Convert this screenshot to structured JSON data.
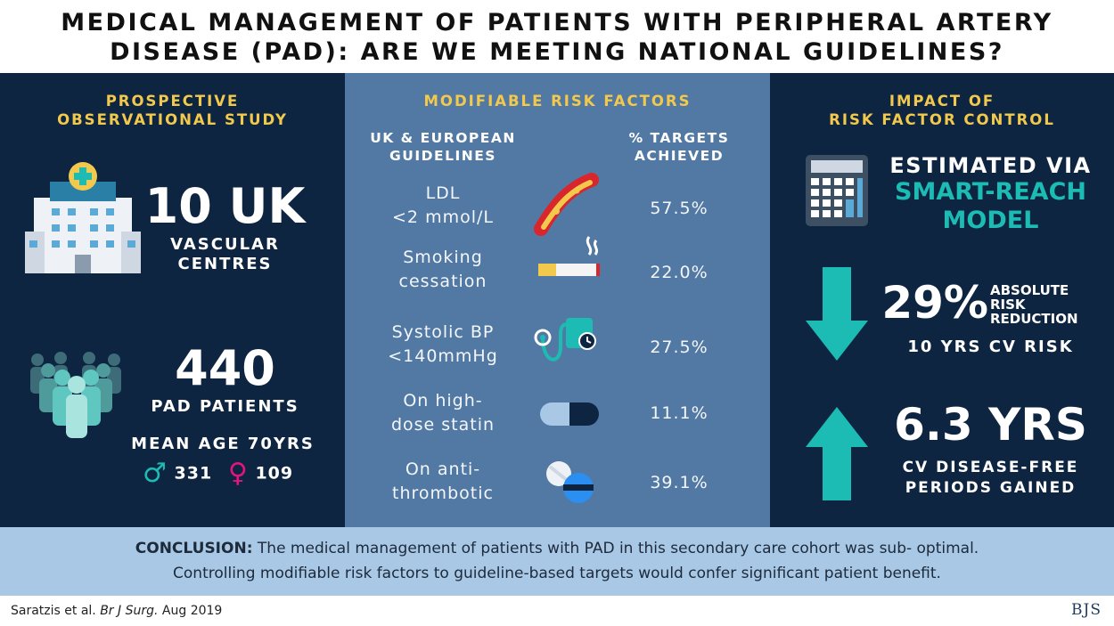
{
  "title": {
    "line1": "MEDICAL MANAGEMENT OF PATIENTS WITH PERIPHERAL ARTERY",
    "line2": "DISEASE (PAD): ARE WE MEETING NATIONAL GUIDELINES?"
  },
  "left": {
    "heading_line1": "PROSPECTIVE",
    "heading_line2": "OBSERVATIONAL STUDY",
    "centres_number": "10 UK",
    "centres_line1": "VASCULAR",
    "centres_line2": "CENTRES",
    "patients_number": "440",
    "patients_label": "PAD PATIENTS",
    "mean_age": "MEAN AGE 70YRS",
    "male_symbol": "♂",
    "male_count": "331",
    "female_symbol": "♀",
    "female_count": "109"
  },
  "middle": {
    "heading": "MODIFIABLE RISK FACTORS",
    "col1_line1": "UK & EUROPEAN",
    "col1_line2": "GUIDELINES",
    "col2_line1": "% TARGETS",
    "col2_line2": "ACHIEVED",
    "rows": [
      {
        "line1": "LDL",
        "line2": "<2 mmol/L",
        "value": "57.5%",
        "icon": "artery-plaque-icon"
      },
      {
        "line1": "Smoking",
        "line2": "cessation",
        "value": "22.0%",
        "icon": "cigarette-icon"
      },
      {
        "line1": "Systolic BP",
        "line2": "<140mmHg",
        "value": "27.5%",
        "icon": "blood-pressure-monitor-icon"
      },
      {
        "line1": "On high-",
        "line2": "dose statin",
        "value": "11.1%",
        "icon": "capsule-icon"
      },
      {
        "line1": "On anti-",
        "line2": "thrombotic",
        "value": "39.1%",
        "icon": "tablets-icon"
      }
    ]
  },
  "right": {
    "heading_line1": "IMPACT OF",
    "heading_line2": "RISK FACTOR CONTROL",
    "estimated": "ESTIMATED VIA",
    "model_line1": "SMART-REACH",
    "model_line2": "MODEL",
    "reduction_number": "29%",
    "reduction_line1": "ABSOLUTE",
    "reduction_line2": "RISK",
    "reduction_line3": "REDUCTION",
    "reduction_sub": "10 YRS CV RISK",
    "gain_number": "6.3 YRS",
    "gain_line1": "CV DISEASE-FREE",
    "gain_line2": "PERIODS GAINED"
  },
  "conclusion": {
    "label": "CONCLUSION:",
    "text_line1": "The medical management of patients with PAD in this secondary care cohort was sub- optimal.",
    "text_line2": "Controlling modifiable risk factors to guideline-based targets would confer significant patient benefit."
  },
  "citation": {
    "authors": "Saratzis et al.",
    "journal": "Br J Surg.",
    "date": "Aug 2019"
  },
  "logo": "BJS",
  "colors": {
    "navy": "#0e2541",
    "steel_blue": "#5279a3",
    "yellow": "#f2c94c",
    "teal": "#1cbcb4",
    "magenta": "#e2157a",
    "light_blue": "#a8c8e6"
  }
}
